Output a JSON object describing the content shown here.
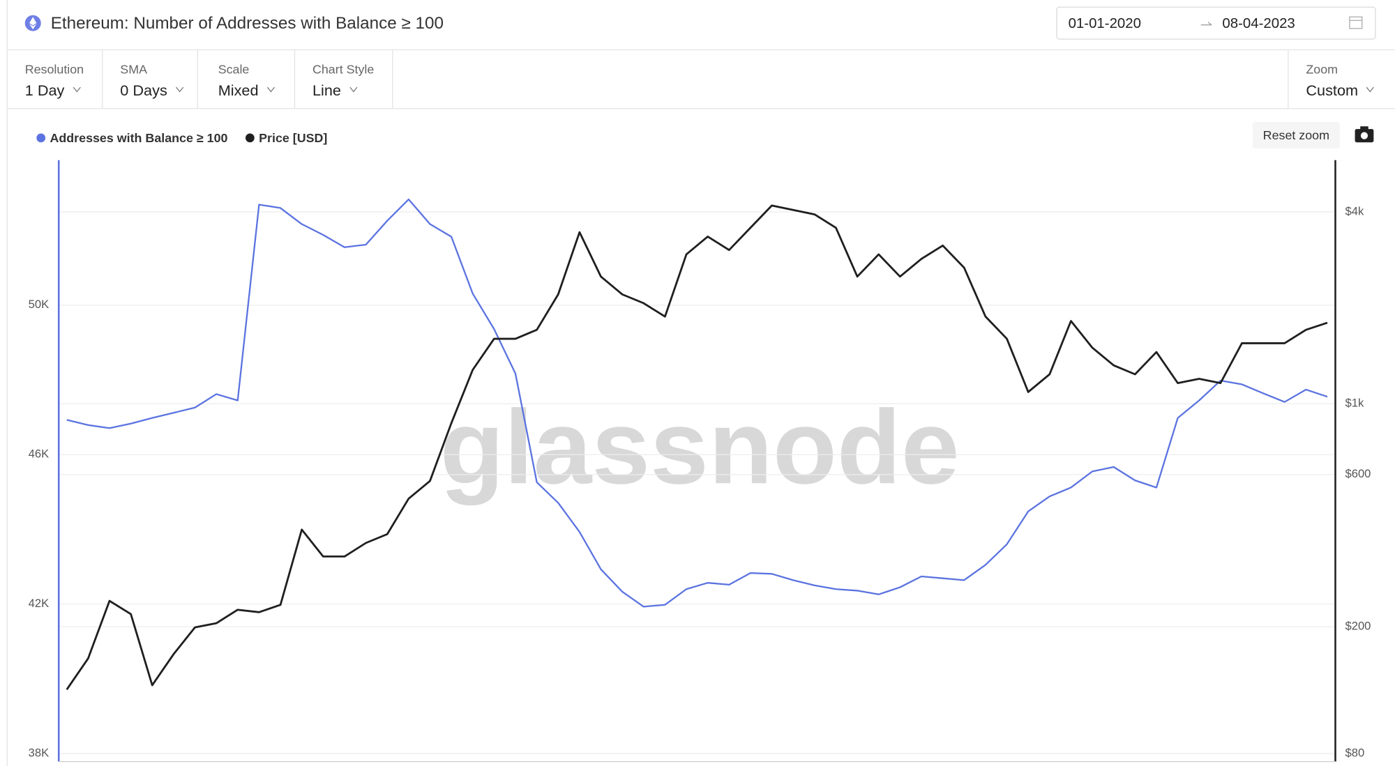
{
  "header": {
    "title": "Ethereum: Number of Addresses with Balance ≥ 100",
    "date_from": "01-01-2020",
    "date_to": "08-04-2023"
  },
  "controls": [
    {
      "label": "Resolution",
      "value": "1 Day"
    },
    {
      "label": "SMA",
      "value": "0 Days"
    },
    {
      "label": "Scale",
      "value": "Mixed"
    },
    {
      "label": "Chart Style",
      "value": "Line"
    }
  ],
  "zoom": {
    "label": "Zoom",
    "value": "Custom"
  },
  "reset_zoom": "Reset zoom",
  "watermark": "glassnode",
  "chart_data": {
    "type": "line",
    "categories": [
      null,
      null,
      null,
      null,
      null,
      null,
      null,
      null,
      null,
      null,
      null,
      null,
      null,
      null,
      null,
      null,
      null,
      null,
      null,
      null,
      null,
      null,
      null,
      null,
      null,
      null,
      null,
      null,
      null,
      null,
      null,
      null,
      null,
      null,
      null,
      null,
      null,
      null,
      null,
      null,
      null,
      null,
      null,
      null,
      null,
      null,
      null,
      null,
      null,
      null,
      null,
      null,
      null,
      null,
      null,
      null,
      null,
      null,
      null,
      null
    ],
    "series": [
      {
        "name": "Addresses with Balance ≥ 100",
        "color": "#5b73e0",
        "values": [
          46930,
          46790,
          46710,
          46830,
          46980,
          47120,
          47260,
          47620,
          47450,
          52690,
          52600,
          52170,
          51880,
          51550,
          51620,
          52260,
          52830,
          52170,
          51830,
          50310,
          49360,
          48170,
          45260,
          44710,
          43930,
          42930,
          42330,
          41930,
          41980,
          42400,
          42570,
          42520,
          42830,
          42810,
          42640,
          42500,
          42400,
          42360,
          42260,
          42450,
          42740,
          42690,
          42640,
          43050,
          43600,
          44480,
          44880,
          45120,
          45550,
          45670,
          45310,
          45120,
          46980,
          47450,
          47980,
          47880,
          47640,
          47410,
          47740,
          47550
        ]
      },
      {
        "name": "Price [USD]",
        "color": "#1f1f1f",
        "axis": "y2",
        "values": [
          127,
          159,
          241,
          219,
          131,
          164,
          199,
          205,
          226,
          222,
          234,
          403,
          332,
          332,
          366,
          390,
          504,
          573,
          870,
          1278,
          1599,
          1599,
          1706,
          2204,
          3452,
          2506,
          2204,
          2068,
          1878,
          2942,
          3345,
          3037,
          3566,
          4186,
          4054,
          3926,
          3566,
          2506,
          2942,
          2506,
          2848,
          3136,
          2672,
          1878,
          1599,
          1089,
          1238,
          1818,
          1500,
          1320,
          1238,
          1453,
          1161,
          1198,
          1161,
          1549,
          1549,
          1549,
          1706,
          1795
        ]
      }
    ],
    "ylim": [
      38000,
      54000
    ],
    "yticks": [
      {
        "value": 38000,
        "label": "38K"
      },
      {
        "value": 42000,
        "label": "42K"
      },
      {
        "value": 46000,
        "label": "46K"
      },
      {
        "value": 50000,
        "label": "50K"
      }
    ],
    "y2lim": [
      80,
      6000
    ],
    "y2ticks": [
      {
        "value": 80,
        "label": "$80"
      },
      {
        "value": 200,
        "label": "$200"
      },
      {
        "value": 600,
        "label": "$600"
      },
      {
        "value": 1000,
        "label": "$1k"
      },
      {
        "value": 4000,
        "label": "$4k"
      }
    ],
    "y2log": true,
    "grid": true,
    "legend": "top-left"
  }
}
